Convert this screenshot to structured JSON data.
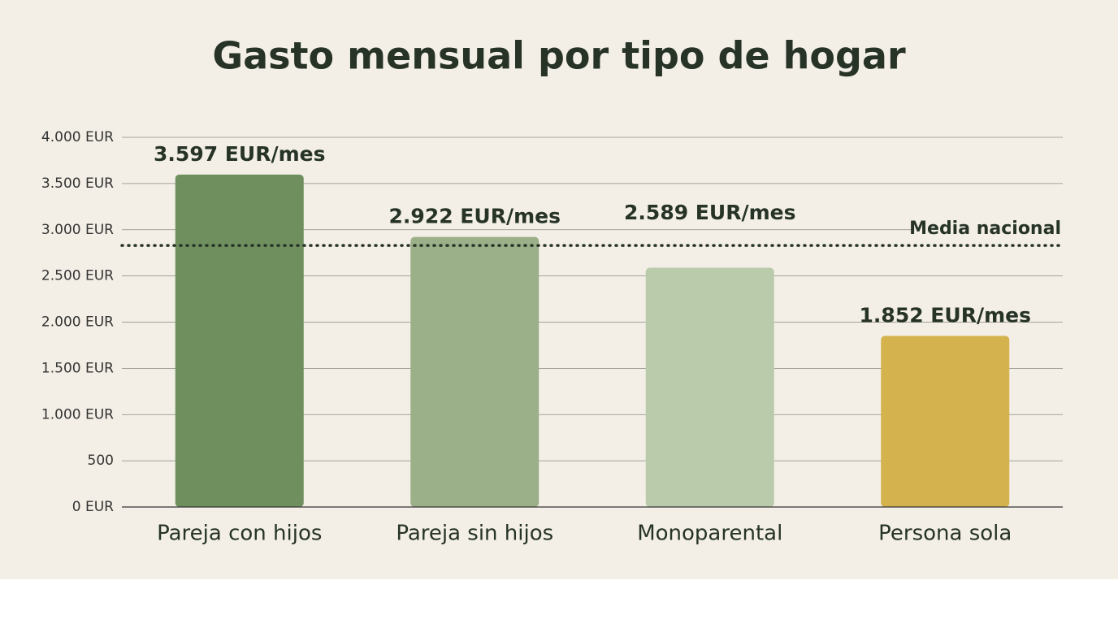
{
  "chart_data": {
    "type": "bar",
    "title": "Gasto mensual por tipo de hogar",
    "categories": [
      "Pareja con hijos",
      "Pareja sin hijos",
      "Monoparental",
      "Persona sola"
    ],
    "values": [
      3597,
      2922,
      2589,
      1852
    ],
    "value_labels": [
      "3.597 EUR/mes",
      "2.922 EUR/mes",
      "2.589 EUR/mes",
      "1.852 EUR/mes"
    ],
    "colors": [
      "#6f8f5f",
      "#9bb088",
      "#b9cbab",
      "#d4b24e"
    ],
    "ylim": [
      0,
      4000
    ],
    "yticks": [
      {
        "value": 0,
        "label": "0 EUR"
      },
      500,
      {
        "value": 1000,
        "label": "1.000 EUR"
      },
      {
        "value": 1500,
        "label": "1.500 EUR"
      },
      {
        "value": 2000,
        "label": "2.000 EUR"
      },
      {
        "value": 2500,
        "label": "2.500 EUR"
      },
      {
        "value": 3000,
        "label": "3.000 EUR"
      },
      {
        "value": 3500,
        "label": "3.500 EUR"
      },
      {
        "value": 4000,
        "label": "4.000 EUR"
      }
    ],
    "grid": true,
    "reference_line": {
      "value": 2830,
      "label": "Media nacional"
    }
  }
}
